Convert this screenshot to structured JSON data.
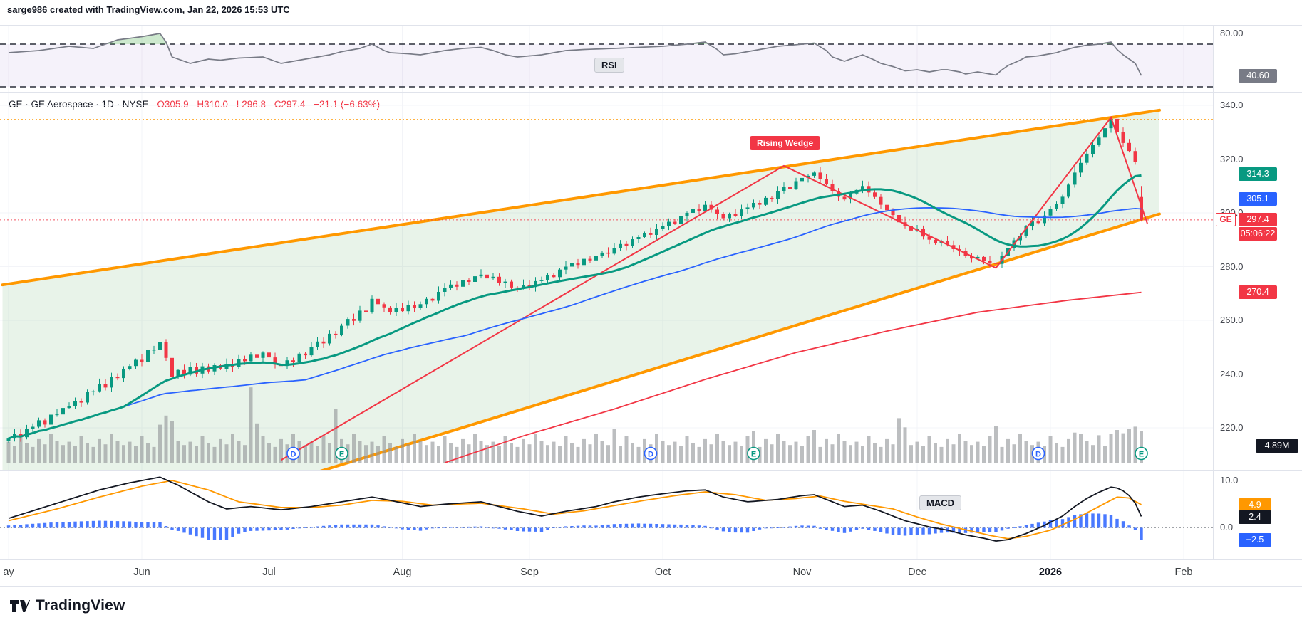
{
  "header": {
    "attribution": "sarge986 created with TradingView.com, Jan 22, 2026 15:53 UTC"
  },
  "symbol_line": {
    "title": "GE · GE Aerospace · 1D · NYSE",
    "open": "O305.9",
    "high": "H310.0",
    "low": "L296.8",
    "close": "C297.4",
    "change": "−21.1 (−6.63%)"
  },
  "rsi_panel": {
    "label": "RSI",
    "axis_tick": "80.00",
    "value": "40.60"
  },
  "price_axis": {
    "ticks": [
      340,
      320,
      300,
      280,
      260,
      240,
      220
    ],
    "ma20_badge": "314.3",
    "ma50_badge": "305.1",
    "symbol_tag": "GE",
    "last_price_badge": "297.4",
    "countdown": "05:06:22",
    "ma200_badge": "270.4",
    "volume_badge": "4.89M"
  },
  "pattern_label": "Rising Wedge",
  "macd_panel": {
    "label": "MACD",
    "axis_ticks": [
      "10.0",
      "0.0"
    ],
    "signal_badge": "4.9",
    "macd_badge": "2.4",
    "hist_badge": "−2.5"
  },
  "time_axis": {
    "ticks": [
      {
        "label": "ay",
        "day": 0,
        "bold": false
      },
      {
        "label": "Jun",
        "day": 22,
        "bold": false
      },
      {
        "label": "Jul",
        "day": 43,
        "bold": false
      },
      {
        "label": "Aug",
        "day": 65,
        "bold": false
      },
      {
        "label": "Sep",
        "day": 86,
        "bold": false
      },
      {
        "label": "Oct",
        "day": 108,
        "bold": false
      },
      {
        "label": "Nov",
        "day": 131,
        "bold": false
      },
      {
        "label": "Dec",
        "day": 150,
        "bold": false
      },
      {
        "label": "2026",
        "day": 172,
        "bold": true
      },
      {
        "label": "Feb",
        "day": 194,
        "bold": false
      }
    ]
  },
  "footer": {
    "brand": "TradingView"
  },
  "colors": {
    "up": "#089981",
    "down": "#f23645",
    "ma20": "#089981",
    "ma50": "#2962ff",
    "ma200": "#f23645",
    "zigzag": "#f23645",
    "wedge": "#ff9800",
    "wedge_fill": "rgba(67,160,71,0.12)",
    "volume": "#8f9296",
    "rsi_line": "#787b86",
    "rsi_band": "rgba(126,87,194,0.08)",
    "rsi_over_fill": "rgba(76,175,80,0.28)",
    "macd_line": "#131722",
    "signal_line": "#ff9800",
    "histogram": "#2962ff",
    "badge_gray": "#787b86",
    "badge_black": "#131722",
    "marker_d": "#2962ff",
    "marker_e": "#089981"
  },
  "chart_data": [
    {
      "id": "price",
      "type": "candlestick",
      "symbol": "GE",
      "interval": "1D",
      "exchange": "NYSE",
      "ylim": [
        207,
        345
      ],
      "last_bar": {
        "open": 305.9,
        "high": 310.0,
        "low": 296.8,
        "close": 297.4,
        "change": -21.1,
        "change_pct": -6.63
      },
      "closes": [
        216.0,
        217.7,
        216.5,
        219.6,
        220.4,
        222.8,
        221.2,
        224.9,
        225.0,
        227.4,
        228.0,
        230.0,
        229.4,
        233.5,
        233.6,
        236.3,
        235.0,
        239.0,
        238.5,
        241.9,
        243.0,
        245.3,
        244.6,
        248.9,
        249.0,
        252.0,
        246.0,
        239.0,
        241.5,
        239.8,
        242.6,
        240.2,
        242.9,
        241.0,
        243.3,
        242.0,
        243.8,
        242.6,
        245.6,
        244.8,
        247.2,
        246.0,
        248.0,
        246.2,
        243.5,
        243.0,
        245.1,
        244.4,
        247.6,
        247.0,
        250.0,
        252.1,
        251.4,
        255.0,
        254.6,
        258.0,
        260.5,
        259.8,
        263.6,
        263.0,
        268.0,
        266.0,
        264.8,
        263.0,
        264.6,
        263.4,
        265.8,
        264.7,
        266.0,
        268.0,
        267.3,
        270.6,
        272.0,
        273.3,
        272.5,
        275.1,
        274.3,
        276.4,
        277.0,
        275.6,
        276.2,
        273.9,
        274.4,
        272.2,
        272.0,
        273.2,
        272.4,
        274.6,
        275.0,
        276.7,
        276.1,
        278.9,
        280.0,
        281.3,
        280.6,
        282.9,
        282.3,
        284.0,
        285.2,
        284.8,
        287.0,
        288.4,
        287.8,
        290.2,
        291.0,
        292.5,
        291.8,
        294.1,
        295.0,
        296.7,
        296.0,
        298.8,
        300.0,
        301.4,
        300.8,
        303.0,
        301.2,
        299.5,
        298.0,
        299.6,
        298.9,
        301.3,
        302.0,
        303.7,
        303.0,
        305.6,
        305.1,
        308.0,
        309.6,
        309.0,
        311.8,
        313.0,
        313.8,
        315.0,
        312.6,
        310.8,
        308.0,
        306.0,
        305.0,
        307.2,
        308.5,
        310.0,
        307.6,
        305.9,
        303.0,
        301.0,
        299.2,
        296.5,
        295.0,
        293.4,
        294.0,
        291.2,
        290.0,
        288.9,
        289.5,
        288.0,
        286.5,
        285.8,
        284.0,
        283.0,
        283.6,
        282.0,
        281.4,
        281.0,
        284.0,
        287.0,
        289.8,
        291.5,
        295.0,
        296.8,
        296.2,
        299.0,
        301.4,
        303.2,
        306.0,
        310.5,
        315.0,
        318.6,
        322.0,
        325.2,
        328.0,
        331.5,
        335.0,
        330.0,
        326.0,
        323.0,
        319.0,
        297.4
      ],
      "volumes_m": [
        3.2,
        2.6,
        4.1,
        3.0,
        2.4,
        3.6,
        2.8,
        4.4,
        3.3,
        2.7,
        3.2,
        2.6,
        4.1,
        3.0,
        2.4,
        3.6,
        2.8,
        4.4,
        3.3,
        2.7,
        3.2,
        2.6,
        4.1,
        3.0,
        2.4,
        5.8,
        7.2,
        6.4,
        3.3,
        2.7,
        3.2,
        2.6,
        4.1,
        3.0,
        2.4,
        3.6,
        2.8,
        4.4,
        3.3,
        2.7,
        11.5,
        6.0,
        4.1,
        3.0,
        2.4,
        3.6,
        2.8,
        4.4,
        3.3,
        2.7,
        3.2,
        2.6,
        4.1,
        3.0,
        8.2,
        3.6,
        2.8,
        4.4,
        3.3,
        2.7,
        3.2,
        2.6,
        4.1,
        3.0,
        2.4,
        3.6,
        2.8,
        4.4,
        3.3,
        2.7,
        3.2,
        2.6,
        4.1,
        3.0,
        2.4,
        3.6,
        2.8,
        4.4,
        3.3,
        2.7,
        3.2,
        2.6,
        4.1,
        3.0,
        2.4,
        3.6,
        2.8,
        4.4,
        3.3,
        2.7,
        3.2,
        2.6,
        4.1,
        3.0,
        2.4,
        3.6,
        2.8,
        4.4,
        3.3,
        2.7,
        5.2,
        2.6,
        4.1,
        3.0,
        2.4,
        3.6,
        2.8,
        4.4,
        3.3,
        2.7,
        3.2,
        2.6,
        4.1,
        3.0,
        2.4,
        3.6,
        2.8,
        4.4,
        3.3,
        2.7,
        3.2,
        2.6,
        4.1,
        4.8,
        2.4,
        3.6,
        2.8,
        4.4,
        3.3,
        2.7,
        3.2,
        2.6,
        4.1,
        5.0,
        2.4,
        3.6,
        2.8,
        4.4,
        3.3,
        2.7,
        3.2,
        2.6,
        4.1,
        3.0,
        2.4,
        3.6,
        2.8,
        6.8,
        5.4,
        2.7,
        3.2,
        2.6,
        4.1,
        3.0,
        2.4,
        3.6,
        2.8,
        4.4,
        3.3,
        2.7,
        3.2,
        2.6,
        4.1,
        5.6,
        2.4,
        3.6,
        2.8,
        4.4,
        3.3,
        2.7,
        3.2,
        2.6,
        4.1,
        3.0,
        2.4,
        3.6,
        4.6,
        4.4,
        3.3,
        2.7,
        4.2,
        2.6,
        4.4,
        5.0,
        4.5,
        5.2,
        5.5,
        4.89
      ],
      "ma_last": {
        "ma20": 314.3,
        "ma50": 305.1,
        "ma200": 270.4
      },
      "ma200_points": [
        [
          72,
          207
        ],
        [
          85,
          217
        ],
        [
          100,
          227
        ],
        [
          115,
          238
        ],
        [
          130,
          248
        ],
        [
          145,
          256
        ],
        [
          160,
          263
        ],
        [
          175,
          267.5
        ],
        [
          187,
          270.4
        ]
      ],
      "zigzag_points": [
        [
          45,
          208
        ],
        [
          128,
          317.5
        ],
        [
          163,
          279.5
        ],
        [
          182,
          335.5
        ],
        [
          188,
          296
        ]
      ],
      "wedge": {
        "upper": [
          [
            -1,
            273.2
          ],
          [
            190,
            338.2
          ]
        ],
        "lower": [
          [
            -1,
            167.6
          ],
          [
            190,
            299.6
          ]
        ]
      },
      "dotted_levels": [
        {
          "price": 334.8,
          "color": "#ff9800"
        },
        {
          "price": 297.4,
          "color": "#f23645"
        }
      ],
      "markers": [
        {
          "day": 47,
          "type": "D"
        },
        {
          "day": 55,
          "type": "E"
        },
        {
          "day": 106,
          "type": "D"
        },
        {
          "day": 123,
          "type": "E"
        },
        {
          "day": 170,
          "type": "D"
        },
        {
          "day": 187,
          "type": "E"
        }
      ]
    },
    {
      "id": "rsi",
      "type": "line",
      "title": "RSI",
      "last": 40.6,
      "bands": [
        70,
        30
      ],
      "points": [
        [
          0,
          62
        ],
        [
          5,
          64
        ],
        [
          10,
          68
        ],
        [
          14,
          66
        ],
        [
          18,
          74
        ],
        [
          22,
          77
        ],
        [
          25,
          80
        ],
        [
          26,
          72
        ],
        [
          27,
          58
        ],
        [
          30,
          52
        ],
        [
          33,
          56
        ],
        [
          35,
          55
        ],
        [
          38,
          57
        ],
        [
          42,
          58
        ],
        [
          45,
          52
        ],
        [
          48,
          55
        ],
        [
          50,
          57
        ],
        [
          53,
          60
        ],
        [
          55,
          63
        ],
        [
          58,
          66
        ],
        [
          60,
          70
        ],
        [
          62,
          64
        ],
        [
          63,
          62
        ],
        [
          66,
          61
        ],
        [
          68,
          60
        ],
        [
          70,
          62
        ],
        [
          72,
          64
        ],
        [
          75,
          66
        ],
        [
          78,
          67
        ],
        [
          80,
          64
        ],
        [
          82,
          60
        ],
        [
          84,
          58
        ],
        [
          86,
          59
        ],
        [
          88,
          60
        ],
        [
          90,
          62
        ],
        [
          92,
          64
        ],
        [
          95,
          65
        ],
        [
          100,
          66
        ],
        [
          104,
          67
        ],
        [
          108,
          68
        ],
        [
          110,
          69
        ],
        [
          112,
          70
        ],
        [
          115,
          72
        ],
        [
          117,
          65
        ],
        [
          118,
          60
        ],
        [
          120,
          61
        ],
        [
          122,
          63
        ],
        [
          125,
          66
        ],
        [
          127,
          68
        ],
        [
          129,
          69
        ],
        [
          131,
          70
        ],
        [
          133,
          71
        ],
        [
          135,
          64
        ],
        [
          136,
          58
        ],
        [
          138,
          54
        ],
        [
          140,
          58
        ],
        [
          141,
          60
        ],
        [
          143,
          55
        ],
        [
          144,
          52
        ],
        [
          146,
          49
        ],
        [
          148,
          45
        ],
        [
          150,
          46
        ],
        [
          152,
          44
        ],
        [
          154,
          46
        ],
        [
          155,
          46
        ],
        [
          157,
          44
        ],
        [
          158,
          42
        ],
        [
          160,
          44
        ],
        [
          161,
          43
        ],
        [
          163,
          41
        ],
        [
          164,
          46
        ],
        [
          165,
          50
        ],
        [
          167,
          55
        ],
        [
          168,
          58
        ],
        [
          170,
          59
        ],
        [
          171,
          60
        ],
        [
          173,
          62
        ],
        [
          174,
          64
        ],
        [
          176,
          67
        ],
        [
          178,
          69
        ],
        [
          180,
          70
        ],
        [
          182,
          72
        ],
        [
          183,
          65
        ],
        [
          184,
          60
        ],
        [
          185,
          56
        ],
        [
          186,
          52
        ],
        [
          187,
          40.6
        ]
      ]
    },
    {
      "id": "macd",
      "type": "macd",
      "last": {
        "macd": 2.4,
        "signal": 4.9,
        "histogram": -2.5
      },
      "macd_points": [
        [
          0,
          2.0
        ],
        [
          5,
          4.0
        ],
        [
          10,
          6.0
        ],
        [
          15,
          8.0
        ],
        [
          20,
          9.5
        ],
        [
          25,
          10.7
        ],
        [
          28,
          9.0
        ],
        [
          33,
          5.5
        ],
        [
          36,
          4.0
        ],
        [
          40,
          4.5
        ],
        [
          45,
          3.8
        ],
        [
          50,
          4.5
        ],
        [
          55,
          5.5
        ],
        [
          60,
          6.5
        ],
        [
          63,
          5.8
        ],
        [
          68,
          4.5
        ],
        [
          72,
          5.0
        ],
        [
          78,
          5.5
        ],
        [
          84,
          3.5
        ],
        [
          88,
          2.5
        ],
        [
          92,
          3.5
        ],
        [
          97,
          4.5
        ],
        [
          100,
          5.5
        ],
        [
          104,
          6.5
        ],
        [
          108,
          7.2
        ],
        [
          112,
          7.8
        ],
        [
          115,
          8.0
        ],
        [
          118,
          6.5
        ],
        [
          122,
          5.5
        ],
        [
          127,
          6.0
        ],
        [
          131,
          6.8
        ],
        [
          133,
          7.0
        ],
        [
          136,
          5.5
        ],
        [
          138,
          4.5
        ],
        [
          141,
          4.8
        ],
        [
          144,
          3.5
        ],
        [
          148,
          1.5
        ],
        [
          152,
          0.2
        ],
        [
          155,
          -0.5
        ],
        [
          158,
          -1.5
        ],
        [
          161,
          -2.2
        ],
        [
          163,
          -2.8
        ],
        [
          165,
          -2.5
        ],
        [
          168,
          -1.2
        ],
        [
          171,
          0.5
        ],
        [
          174,
          2.5
        ],
        [
          176,
          4.5
        ],
        [
          178,
          6.2
        ],
        [
          180,
          7.5
        ],
        [
          182,
          8.6
        ],
        [
          183,
          8.4
        ],
        [
          184,
          7.8
        ],
        [
          185,
          6.8
        ],
        [
          186,
          5.2
        ],
        [
          187,
          2.4
        ]
      ],
      "signal_points": [
        [
          0,
          1.5
        ],
        [
          8,
          4.0
        ],
        [
          15,
          6.5
        ],
        [
          22,
          8.8
        ],
        [
          27,
          10.0
        ],
        [
          33,
          8.0
        ],
        [
          38,
          5.5
        ],
        [
          45,
          4.3
        ],
        [
          50,
          4.3
        ],
        [
          55,
          4.8
        ],
        [
          60,
          5.8
        ],
        [
          65,
          5.6
        ],
        [
          70,
          4.8
        ],
        [
          78,
          5.2
        ],
        [
          85,
          4.0
        ],
        [
          90,
          2.9
        ],
        [
          95,
          3.6
        ],
        [
          100,
          4.7
        ],
        [
          105,
          5.8
        ],
        [
          110,
          6.8
        ],
        [
          115,
          7.6
        ],
        [
          120,
          7.0
        ],
        [
          125,
          5.8
        ],
        [
          130,
          6.2
        ],
        [
          134,
          6.7
        ],
        [
          138,
          5.6
        ],
        [
          142,
          4.8
        ],
        [
          146,
          4.0
        ],
        [
          150,
          2.3
        ],
        [
          154,
          0.8
        ],
        [
          158,
          -0.4
        ],
        [
          162,
          -1.6
        ],
        [
          165,
          -2.3
        ],
        [
          168,
          -1.8
        ],
        [
          172,
          -0.5
        ],
        [
          176,
          1.8
        ],
        [
          180,
          4.5
        ],
        [
          183,
          6.5
        ],
        [
          185,
          6.3
        ],
        [
          187,
          4.9
        ]
      ]
    }
  ]
}
